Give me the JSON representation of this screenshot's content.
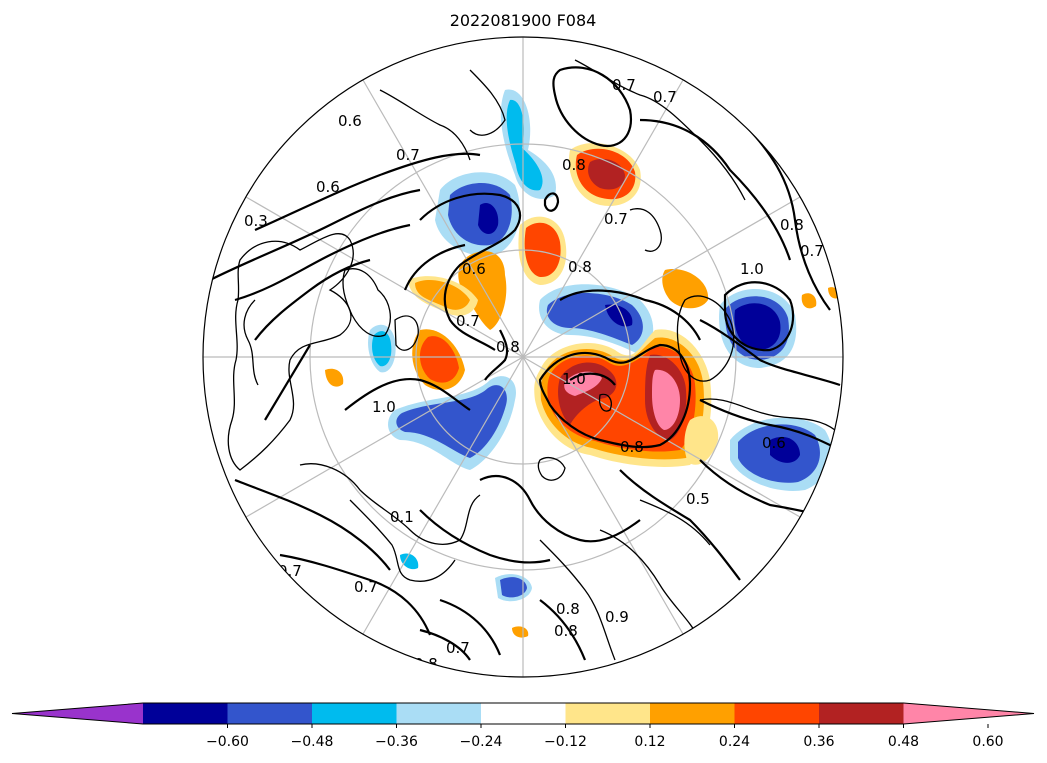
{
  "figure": {
    "title": "2022081900 F084",
    "projection": "north-polar-stereographic",
    "background": "#ffffff",
    "graticule_color": "#bbbbbb",
    "coast_color": "#000000",
    "contour_color": "#000000"
  },
  "colorbar": {
    "orientation": "horizontal",
    "extend": "both",
    "bins": [
      {
        "color": "#9933cc"
      },
      {
        "color": "#000099"
      },
      {
        "color": "#3355cc"
      },
      {
        "color": "#00bbee"
      },
      {
        "color": "#aaddf5"
      },
      {
        "color": "#ffffff"
      },
      {
        "color": "#ffe58a"
      },
      {
        "color": "#ffa000"
      },
      {
        "color": "#ff4500"
      },
      {
        "color": "#b22222"
      },
      {
        "color": "#ff85a8"
      }
    ],
    "ticks": [
      "−0.60",
      "−0.48",
      "−0.36",
      "−0.24",
      "−0.12",
      "0.12",
      "0.24",
      "0.36",
      "0.48",
      "0.60"
    ]
  },
  "contour_labels": [
    "0.7",
    "0.7",
    "0.6",
    "0.7",
    "0.6",
    "0.3",
    "0.8",
    "0.8",
    "0.7",
    "1.0",
    "0.8",
    "0.7",
    "0.6",
    "0.7",
    "0.8",
    "1.0",
    "1.0",
    "0.8",
    "0.6",
    "0.5",
    "0.7",
    "0.7",
    "0.1",
    "0.7",
    "0.8",
    "0.8",
    "0.8",
    "0.9"
  ],
  "fill_colors": {
    "anom_neg_1": "#aaddf5",
    "anom_neg_2": "#00bbee",
    "anom_neg_3": "#3355cc",
    "anom_neg_4": "#000099",
    "anom_pos_1": "#ffe58a",
    "anom_pos_2": "#ffa000",
    "anom_pos_3": "#ff4500",
    "anom_pos_4": "#b22222",
    "anom_pos_5": "#ff85a8"
  }
}
